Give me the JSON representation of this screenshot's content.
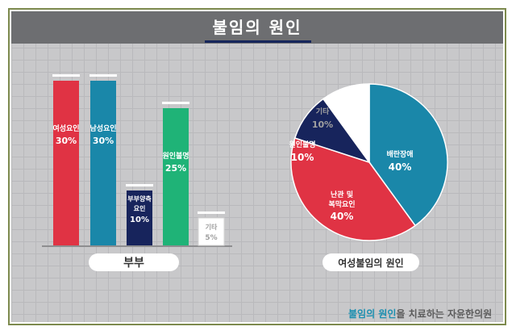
{
  "title": "불임의 원인",
  "footer": {
    "highlight": "불임의 원인",
    "rest": "을 치료하는 자윤한의원"
  },
  "chart_data": [
    {
      "type": "bar",
      "title": "부부",
      "categories": [
        "여성요인",
        "남성요인",
        "부부양측 요인",
        "원인불명",
        "기타"
      ],
      "values": [
        30,
        30,
        10,
        25,
        5
      ],
      "value_labels": [
        "30%",
        "30%",
        "10%",
        "25%",
        "5%"
      ],
      "ylim": [
        0,
        30
      ],
      "colors": [
        "#e03344",
        "#1a87a9",
        "#17245c",
        "#1fb377",
        "#ffffff"
      ],
      "label_colors": [
        "#ffffff",
        "#ffffff",
        "#ffffff",
        "#ffffff",
        "#a0a0a0"
      ],
      "grid": true
    },
    {
      "type": "pie",
      "title": "여성불임의 원인",
      "labels": [
        "배란장애",
        "난관 및 복막요인",
        "원인불명",
        "기타"
      ],
      "values": [
        40,
        40,
        10,
        10
      ],
      "value_labels": [
        "40%",
        "40%",
        "10%",
        "10%"
      ],
      "colors": [
        "#1a87a9",
        "#e03344",
        "#17245c",
        "#ffffff"
      ],
      "label_colors": [
        "#ffffff",
        "#ffffff",
        "#ffffff",
        "#a0a0a0"
      ]
    }
  ]
}
